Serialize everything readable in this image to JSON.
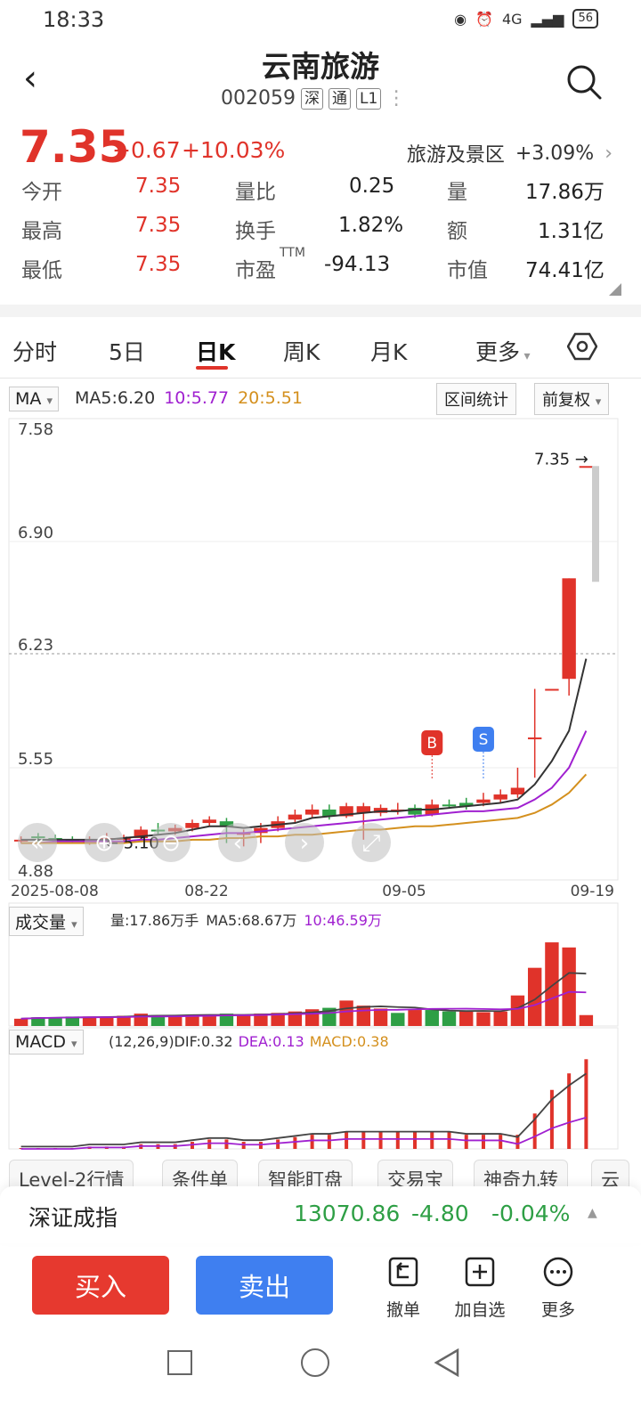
{
  "status_bar": {
    "time": "18:33",
    "network": "4G",
    "battery": "56"
  },
  "header": {
    "name": "云南旅游",
    "code": "002059",
    "tags": [
      "深",
      "通",
      "L1"
    ]
  },
  "quote": {
    "price": "7.35",
    "change": "+0.67",
    "change_pct": "+10.03%",
    "sector": "旅游及景区",
    "sector_pct": "+3.09%",
    "rows": [
      [
        {
          "label": "今开",
          "value": "7.35"
        },
        {
          "label": "量比",
          "value": "0.25"
        },
        {
          "label": "量",
          "value": "17.86万"
        }
      ],
      [
        {
          "label": "最高",
          "value": "7.35"
        },
        {
          "label": "换手",
          "value": "1.82%"
        },
        {
          "label": "额",
          "value": "1.31亿"
        }
      ],
      [
        {
          "label": "最低",
          "value": "7.35"
        },
        {
          "label": "市盈",
          "sup": "TTM",
          "value": "-94.13"
        },
        {
          "label": "市值",
          "value": "74.41亿"
        }
      ]
    ]
  },
  "tabs": [
    "分时",
    "5日",
    "日K",
    "周K",
    "月K",
    "更多"
  ],
  "active_tab": "日K",
  "chart": {
    "indicator": "MA",
    "ma_legend": {
      "ma5": "MA5:6.20",
      "ma10": "10:5.77",
      "ma20": "20:5.51"
    },
    "range_label": "区间统计",
    "adjust_label": "前复权",
    "y_ticks": [
      "7.58",
      "6.90",
      "6.23",
      "5.55",
      "4.88"
    ],
    "x_ticks": [
      "2025-08-08",
      "08-22",
      "09-05",
      "09-19"
    ],
    "last_price_label": "7.35 →",
    "low_marker": "← 5.10",
    "b_marker": "B",
    "s_marker": "S",
    "colors": {
      "up": "#e0332a",
      "down": "#2e9f45",
      "ma5": "#333333",
      "ma10": "#a020d0",
      "ma20": "#d4901e"
    },
    "volume_label": "成交量",
    "volume_legend": {
      "vol": "量:17.86万手",
      "ma5": "MA5:68.67万",
      "ma10": "10:46.59万"
    },
    "macd_label": "MACD",
    "macd_legend": {
      "params": "(12,26,9)DIF:0.32",
      "dea": "DEA:0.13",
      "macd": "MACD:0.38"
    }
  },
  "chart_data": {
    "type": "candlestick",
    "y_range": [
      4.88,
      7.58
    ],
    "candles": [
      {
        "o": 5.12,
        "c": 5.12,
        "h": 5.14,
        "l": 5.1,
        "up": true
      },
      {
        "o": 5.13,
        "c": 5.14,
        "h": 5.16,
        "l": 5.11,
        "up": false
      },
      {
        "o": 5.13,
        "c": 5.12,
        "h": 5.15,
        "l": 5.1,
        "up": false
      },
      {
        "o": 5.12,
        "c": 5.12,
        "h": 5.14,
        "l": 5.1,
        "up": false
      },
      {
        "o": 5.1,
        "c": 5.12,
        "h": 5.14,
        "l": 5.09,
        "up": true
      },
      {
        "o": 5.12,
        "c": 5.13,
        "h": 5.16,
        "l": 5.1,
        "up": true
      },
      {
        "o": 5.13,
        "c": 5.13,
        "h": 5.15,
        "l": 5.11,
        "up": true
      },
      {
        "o": 5.13,
        "c": 5.18,
        "h": 5.2,
        "l": 5.12,
        "up": true
      },
      {
        "o": 5.18,
        "c": 5.18,
        "h": 5.22,
        "l": 5.15,
        "up": false
      },
      {
        "o": 5.17,
        "c": 5.19,
        "h": 5.21,
        "l": 5.15,
        "up": true
      },
      {
        "o": 5.19,
        "c": 5.22,
        "h": 5.24,
        "l": 5.17,
        "up": true
      },
      {
        "o": 5.22,
        "c": 5.24,
        "h": 5.26,
        "l": 5.2,
        "up": true
      },
      {
        "o": 5.23,
        "c": 5.2,
        "h": 5.25,
        "l": 5.1,
        "up": false
      },
      {
        "o": 5.15,
        "c": 5.16,
        "h": 5.18,
        "l": 5.08,
        "up": true
      },
      {
        "o": 5.16,
        "c": 5.19,
        "h": 5.22,
        "l": 5.1,
        "up": true
      },
      {
        "o": 5.19,
        "c": 5.23,
        "h": 5.26,
        "l": 5.17,
        "up": true
      },
      {
        "o": 5.24,
        "c": 5.27,
        "h": 5.3,
        "l": 5.22,
        "up": true
      },
      {
        "o": 5.27,
        "c": 5.3,
        "h": 5.33,
        "l": 5.25,
        "up": true
      },
      {
        "o": 5.3,
        "c": 5.26,
        "h": 5.33,
        "l": 5.24,
        "up": false
      },
      {
        "o": 5.26,
        "c": 5.32,
        "h": 5.34,
        "l": 5.25,
        "up": true
      },
      {
        "o": 5.32,
        "c": 5.28,
        "h": 5.34,
        "l": 5.12,
        "up": true
      },
      {
        "o": 5.28,
        "c": 5.31,
        "h": 5.33,
        "l": 5.26,
        "up": true
      },
      {
        "o": 5.3,
        "c": 5.3,
        "h": 5.34,
        "l": 5.27,
        "up": true
      },
      {
        "o": 5.31,
        "c": 5.27,
        "h": 5.33,
        "l": 5.25,
        "up": false
      },
      {
        "o": 5.27,
        "c": 5.33,
        "h": 5.36,
        "l": 5.26,
        "up": true
      },
      {
        "o": 5.33,
        "c": 5.33,
        "h": 5.36,
        "l": 5.31,
        "up": false
      },
      {
        "o": 5.32,
        "c": 5.34,
        "h": 5.37,
        "l": 5.3,
        "up": false
      },
      {
        "o": 5.34,
        "c": 5.36,
        "h": 5.4,
        "l": 5.32,
        "up": true
      },
      {
        "o": 5.36,
        "c": 5.39,
        "h": 5.42,
        "l": 5.34,
        "up": true
      },
      {
        "o": 5.39,
        "c": 5.43,
        "h": 5.55,
        "l": 5.37,
        "up": true
      },
      {
        "o": 5.73,
        "c": 5.73,
        "h": 6.02,
        "l": 5.49,
        "up": true
      },
      {
        "o": 6.02,
        "c": 6.02,
        "h": 6.02,
        "l": 6.02,
        "up": true
      },
      {
        "o": 6.68,
        "c": 6.08,
        "h": 6.68,
        "l": 5.98,
        "up": true
      },
      {
        "o": 7.35,
        "c": 7.35,
        "h": 7.35,
        "l": 7.35,
        "up": true
      }
    ],
    "ma5": [
      5.12,
      5.12,
      5.12,
      5.12,
      5.12,
      5.12,
      5.13,
      5.14,
      5.15,
      5.16,
      5.18,
      5.2,
      5.2,
      5.19,
      5.2,
      5.21,
      5.22,
      5.25,
      5.26,
      5.27,
      5.28,
      5.29,
      5.29,
      5.3,
      5.3,
      5.31,
      5.32,
      5.33,
      5.34,
      5.36,
      5.45,
      5.59,
      5.77,
      6.2
    ],
    "ma10": [
      5.1,
      5.1,
      5.11,
      5.11,
      5.11,
      5.11,
      5.11,
      5.12,
      5.12,
      5.13,
      5.14,
      5.15,
      5.16,
      5.16,
      5.17,
      5.18,
      5.19,
      5.2,
      5.21,
      5.22,
      5.23,
      5.24,
      5.25,
      5.26,
      5.27,
      5.28,
      5.29,
      5.29,
      5.3,
      5.31,
      5.36,
      5.43,
      5.55,
      5.77
    ],
    "ma20": [
      5.1,
      5.1,
      5.1,
      5.1,
      5.1,
      5.1,
      5.1,
      5.11,
      5.11,
      5.11,
      5.12,
      5.12,
      5.13,
      5.13,
      5.14,
      5.14,
      5.15,
      5.15,
      5.16,
      5.17,
      5.18,
      5.18,
      5.19,
      5.2,
      5.2,
      5.21,
      5.22,
      5.23,
      5.24,
      5.25,
      5.28,
      5.33,
      5.4,
      5.51
    ],
    "volume": [
      10,
      12,
      12,
      13,
      13,
      12,
      14,
      17,
      15,
      14,
      15,
      15,
      17,
      15,
      17,
      18,
      20,
      23,
      25,
      35,
      28,
      24,
      18,
      22,
      22,
      20,
      21,
      19,
      20,
      42,
      80,
      115,
      108,
      15
    ],
    "volume_up": [
      true,
      false,
      false,
      false,
      true,
      true,
      true,
      true,
      false,
      true,
      true,
      true,
      false,
      true,
      true,
      true,
      true,
      true,
      false,
      true,
      true,
      true,
      false,
      true,
      false,
      false,
      true,
      true,
      true,
      true,
      true,
      true,
      true,
      true
    ],
    "macd": [
      0.0,
      0.0,
      0.0,
      0.0,
      0.01,
      0.01,
      0.01,
      0.02,
      0.02,
      0.02,
      0.03,
      0.04,
      0.04,
      0.03,
      0.03,
      0.04,
      0.05,
      0.06,
      0.06,
      0.07,
      0.07,
      0.07,
      0.07,
      0.07,
      0.07,
      0.07,
      0.06,
      0.06,
      0.06,
      0.06,
      0.15,
      0.25,
      0.32,
      0.38
    ]
  },
  "chips": [
    "Level-2行情",
    "条件单",
    "智能盯盘",
    "交易宝",
    "神奇九转",
    "云"
  ],
  "index": {
    "name": "深证成指",
    "value": "13070.86",
    "change": "-4.80",
    "pct": "-0.04%"
  },
  "trade": {
    "buy": "买入",
    "sell": "卖出",
    "cancel": "撤单",
    "add_watch": "加自选",
    "more": "更多"
  }
}
